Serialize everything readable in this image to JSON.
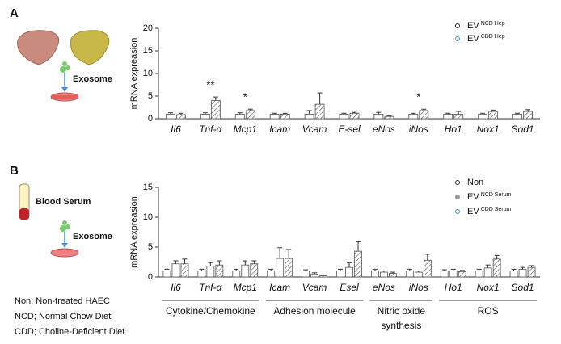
{
  "panels": [
    "A",
    "B"
  ],
  "illustration": {
    "a_label": "Exosome",
    "b_serum": "Blood Serum",
    "b_label": "Exosome"
  },
  "footnotes": [
    "Non; Non-treated HAEC",
    "NCD; Normal Chow Diet",
    "CDD; Choline-Deficient Diet"
  ],
  "chart_data": [
    {
      "type": "bar",
      "y_label": "mRNA expreasion",
      "categories": [
        "Il6",
        "Tnf-α",
        "Mcp1",
        "Icam",
        "Vcam",
        "E-sel",
        "eNos",
        "iNos",
        "Ho1",
        "Nox1",
        "Sod1"
      ],
      "ylim": [
        0,
        20
      ],
      "yticks": [
        0,
        5,
        10,
        15,
        20
      ],
      "series": [
        {
          "name": "EV",
          "name_sup": "NCD Hep",
          "color": "#222222",
          "hatch": false,
          "values": [
            1.0,
            1.0,
            1.0,
            1.0,
            1.0,
            1.0,
            1.0,
            1.0,
            1.0,
            1.0,
            1.0
          ],
          "errors": [
            0.3,
            0.3,
            0.3,
            0.2,
            0.8,
            0.2,
            0.4,
            0.2,
            0.2,
            0.2,
            0.2
          ]
        },
        {
          "name": "EV",
          "name_sup": "CDD Hep",
          "color": "#4a90e2",
          "hatch": true,
          "values": [
            0.9,
            4.0,
            1.8,
            1.0,
            3.2,
            1.2,
            0.5,
            1.8,
            1.0,
            1.6,
            1.6
          ],
          "errors": [
            0.3,
            0.8,
            0.3,
            0.2,
            2.5,
            0.2,
            0.1,
            0.3,
            0.6,
            0.3,
            0.4
          ]
        }
      ],
      "annotations": [
        {
          "text": "**",
          "category": 1
        },
        {
          "text": "*",
          "category": 2
        },
        {
          "text": "*",
          "category": 7
        }
      ]
    },
    {
      "type": "bar",
      "y_label": "mRNA expreasion",
      "categories": [
        "Il6",
        "Tnf-α",
        "Mcp1",
        "Icam",
        "Vcam",
        "Esel",
        "eNos",
        "iNos",
        "Ho1",
        "Nox1",
        "Sod1"
      ],
      "ylim": [
        0,
        15
      ],
      "yticks": [
        0,
        5,
        10,
        15
      ],
      "series": [
        {
          "name": "Non",
          "color": "#222222",
          "hatch": false,
          "values": [
            1.0,
            1.0,
            1.0,
            1.0,
            1.0,
            1.0,
            1.0,
            1.0,
            1.0,
            1.0,
            1.0
          ],
          "errors": [
            0.3,
            0.3,
            0.3,
            0.3,
            0.2,
            0.3,
            0.3,
            0.3,
            0.2,
            0.3,
            0.3
          ]
        },
        {
          "name": "EV",
          "name_sup": "NCD Serum",
          "color": "#999999",
          "hatch": false,
          "values": [
            2.2,
            1.8,
            2.0,
            3.1,
            0.5,
            1.6,
            0.8,
            0.8,
            1.0,
            1.5,
            1.3
          ],
          "errors": [
            0.5,
            0.6,
            0.7,
            1.8,
            0.2,
            0.8,
            0.2,
            0.2,
            0.3,
            0.5,
            0.3
          ]
        },
        {
          "name": "EV",
          "name_sup": "CDD Serum",
          "color": "#4a90e2",
          "hatch": true,
          "values": [
            2.2,
            2.0,
            2.2,
            3.1,
            0.2,
            4.3,
            0.6,
            2.8,
            0.9,
            3.0,
            1.6
          ],
          "errors": [
            0.8,
            0.7,
            0.5,
            1.5,
            0.1,
            1.6,
            0.2,
            1.0,
            0.2,
            0.6,
            0.3
          ]
        }
      ],
      "groups": [
        {
          "label": [
            "Cytokine/Chemokine"
          ],
          "span": 3
        },
        {
          "label": [
            "Adhesion molecule"
          ],
          "span": 3
        },
        {
          "label": [
            "Nitric oxide",
            "synthesis"
          ],
          "span": 2
        },
        {
          "label": [
            "ROS"
          ],
          "span": 3
        }
      ]
    }
  ]
}
